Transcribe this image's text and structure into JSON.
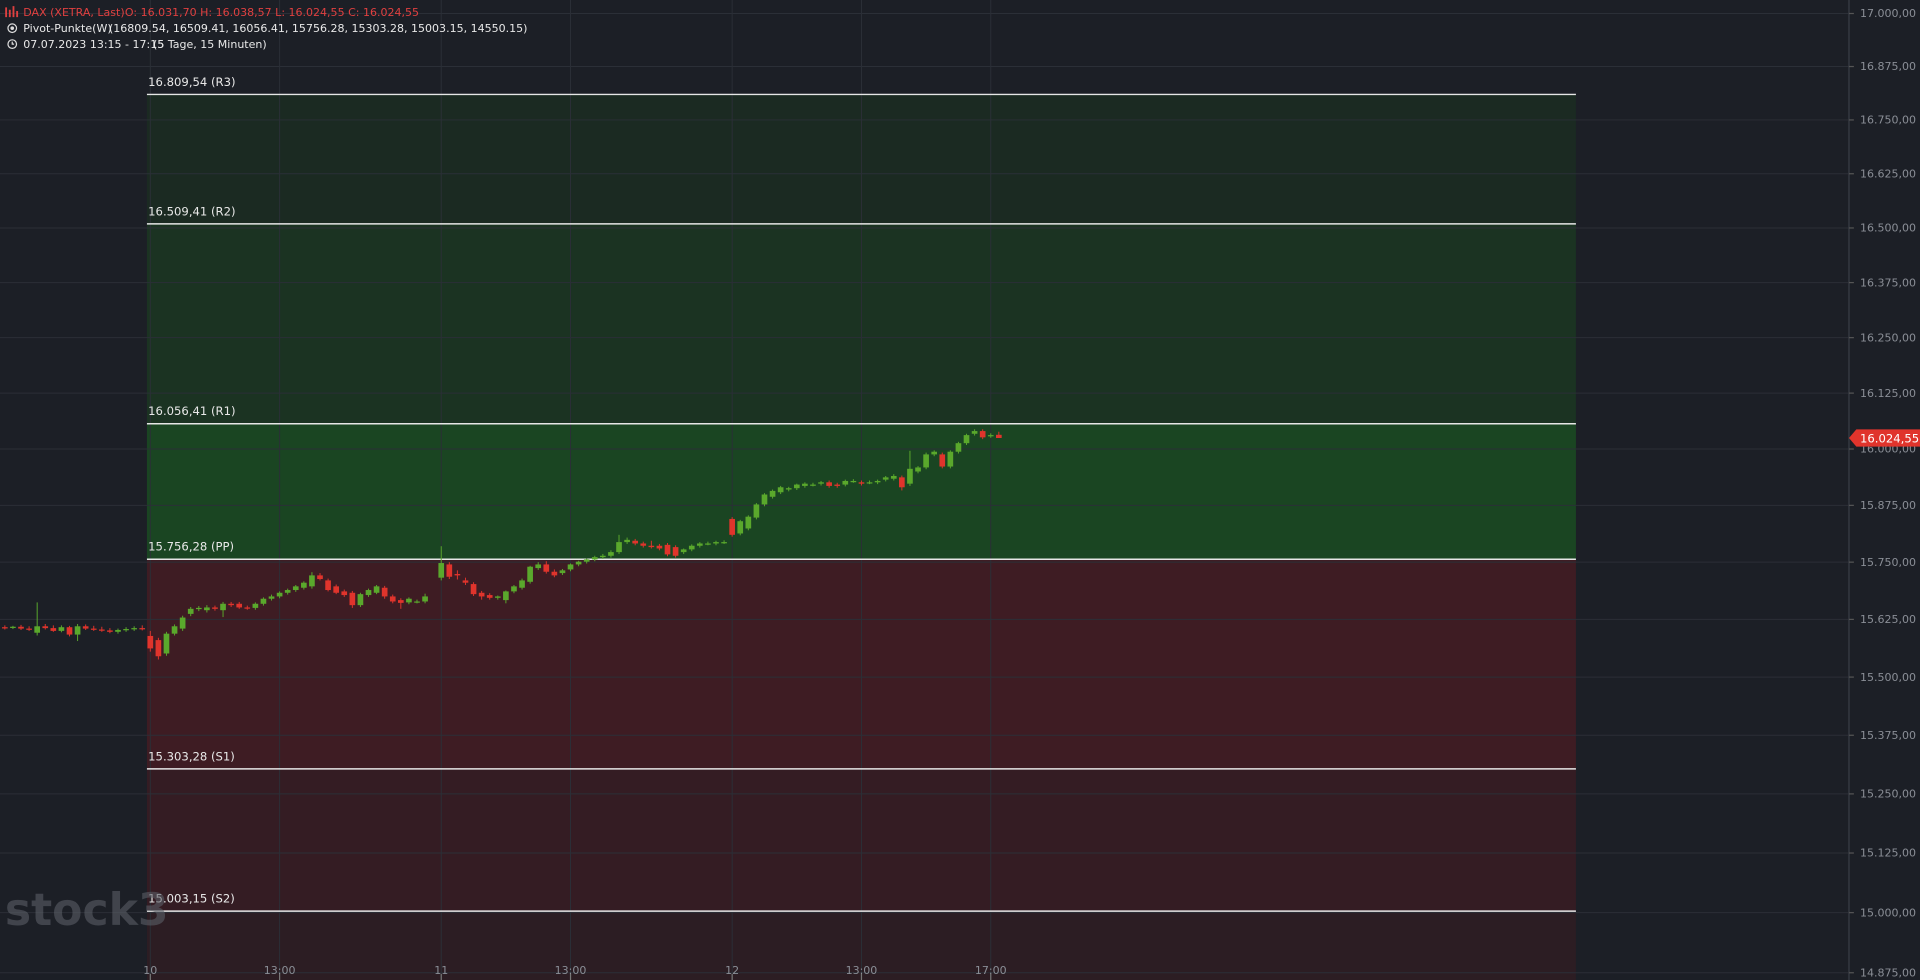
{
  "chart_data": {
    "type": "candlestick",
    "header": {
      "instrument": "DAX (XETRA, Last)",
      "ohlc_text": "O: 16.031,70  H: 16.038,57  L: 16.024,55  C: 16.024,55",
      "indicator": "Pivot-Punkte(W)",
      "indicator_values": "(16809.54,  16509.41,  16056.41,  15756.28,  15303.28,  15003.15,  14550.15)",
      "period": "07.07.2023 13:15 - 17:15",
      "period_detail": "(5 Tage, 15 Minuten)"
    },
    "watermark": "stock3",
    "log_scale": true,
    "grid": true,
    "up_color": "#5aa82c",
    "down_color": "#e0342c",
    "ylim": [
      14860,
      17032
    ],
    "yticks": [
      {
        "value": 17000,
        "label": "17.000,00"
      },
      {
        "value": 16875,
        "label": "16.875,00"
      },
      {
        "value": 16750,
        "label": "16.750,00"
      },
      {
        "value": 16625,
        "label": "16.625,00"
      },
      {
        "value": 16500,
        "label": "16.500,00"
      },
      {
        "value": 16375,
        "label": "16.375,00"
      },
      {
        "value": 16250,
        "label": "16.250,00"
      },
      {
        "value": 16125,
        "label": "16.125,00"
      },
      {
        "value": 16000,
        "label": "16.000,00"
      },
      {
        "value": 15875,
        "label": "15.875,00"
      },
      {
        "value": 15750,
        "label": "15.750,00"
      },
      {
        "value": 15625,
        "label": "15.625,00"
      },
      {
        "value": 15500,
        "label": "15.500,00"
      },
      {
        "value": 15375,
        "label": "15.375,00"
      },
      {
        "value": 15250,
        "label": "15.250,00"
      },
      {
        "value": 15125,
        "label": "15.125,00"
      },
      {
        "value": 15000,
        "label": "15.000,00"
      },
      {
        "value": 14875,
        "label": "14.875,00"
      }
    ],
    "xlim": [
      -0.6,
      228.2
    ],
    "xticks": [
      {
        "value": 18,
        "label": "10"
      },
      {
        "value": 34,
        "label": "13:00"
      },
      {
        "value": 54,
        "label": "11"
      },
      {
        "value": 70,
        "label": "13:00"
      },
      {
        "value": 90,
        "label": "12"
      },
      {
        "value": 106,
        "label": "13:00"
      },
      {
        "value": 122,
        "label": "17:00"
      }
    ],
    "pivots": [
      {
        "value": 16809.54,
        "label": "16.809,54 (R3)"
      },
      {
        "value": 16509.41,
        "label": "16.509,41 (R2)"
      },
      {
        "value": 16056.41,
        "label": "16.056,41 (R1)"
      },
      {
        "value": 15756.28,
        "label": "15.756,28 (PP)"
      },
      {
        "value": 15303.28,
        "label": "15.303,28 (S1)"
      },
      {
        "value": 15003.15,
        "label": "15.003,15 (S2)"
      }
    ],
    "last_price": {
      "value": 16024.55,
      "label": "16.024,55"
    },
    "ohlc": [
      [
        15608,
        15612,
        15603,
        15607
      ],
      [
        15607,
        15611,
        15604,
        15609
      ],
      [
        15609,
        15613,
        15602,
        15605
      ],
      [
        15605,
        15610,
        15600,
        15603
      ],
      [
        15596,
        15662,
        15590,
        15610
      ],
      [
        15610,
        15615,
        15603,
        15606
      ],
      [
        15606,
        15612,
        15598,
        15600
      ],
      [
        15600,
        15612,
        15597,
        15608
      ],
      [
        15608,
        15611,
        15588,
        15592
      ],
      [
        15592,
        15615,
        15578,
        15610
      ],
      [
        15610,
        15614,
        15602,
        15605
      ],
      [
        15605,
        15611,
        15600,
        15603
      ],
      [
        15603,
        15609,
        15598,
        15601
      ],
      [
        15601,
        15606,
        15595,
        15598
      ],
      [
        15598,
        15605,
        15594,
        15602
      ],
      [
        15602,
        15608,
        15598,
        15604
      ],
      [
        15604,
        15610,
        15600,
        15606
      ],
      [
        15606,
        15612,
        15601,
        15604
      ],
      [
        15589,
        15600,
        15555,
        15562
      ],
      [
        15580,
        15585,
        15538,
        15545
      ],
      [
        15551,
        15598,
        15546,
        15594
      ],
      [
        15594,
        15614,
        15590,
        15610
      ],
      [
        15605,
        15633,
        15600,
        15629
      ],
      [
        15637,
        15652,
        15632,
        15648
      ],
      [
        15648,
        15654,
        15643,
        15650
      ],
      [
        15645,
        15656,
        15640,
        15651
      ],
      [
        15651,
        15655,
        15644,
        15648
      ],
      [
        15645,
        15663,
        15630,
        15659
      ],
      [
        15659,
        15663,
        15652,
        15656
      ],
      [
        15659,
        15663,
        15648,
        15651
      ],
      [
        15651,
        15655,
        15646,
        15650
      ],
      [
        15650,
        15662,
        15646,
        15659
      ],
      [
        15659,
        15673,
        15655,
        15670
      ],
      [
        15670,
        15679,
        15666,
        15675
      ],
      [
        15675,
        15686,
        15671,
        15683
      ],
      [
        15683,
        15692,
        15679,
        15689
      ],
      [
        15689,
        15700,
        15685,
        15697
      ],
      [
        15694,
        15708,
        15690,
        15705
      ],
      [
        15697,
        15728,
        15692,
        15721
      ],
      [
        15721,
        15726,
        15710,
        15713
      ],
      [
        15710,
        15714,
        15686,
        15689
      ],
      [
        15697,
        15701,
        15680,
        15683
      ],
      [
        15686,
        15690,
        15674,
        15678
      ],
      [
        15683,
        15687,
        15650,
        15656
      ],
      [
        15656,
        15683,
        15652,
        15680
      ],
      [
        15678,
        15692,
        15674,
        15689
      ],
      [
        15683,
        15700,
        15680,
        15697
      ],
      [
        15694,
        15698,
        15670,
        15675
      ],
      [
        15675,
        15679,
        15660,
        15664
      ],
      [
        15667,
        15671,
        15648,
        15661
      ],
      [
        15662,
        15673,
        15658,
        15670
      ],
      [
        15664,
        15668,
        15660,
        15664
      ],
      [
        15664,
        15681,
        15660,
        15675
      ],
      null,
      [
        15716,
        15785,
        15710,
        15748
      ],
      [
        15745,
        15750,
        15713,
        15718
      ],
      [
        15724,
        15732,
        15712,
        15721
      ],
      [
        15710,
        15716,
        15700,
        15705
      ],
      [
        15702,
        15706,
        15676,
        15680
      ],
      [
        15683,
        15687,
        15668,
        15675
      ],
      [
        15678,
        15682,
        15668,
        15672
      ],
      [
        15672,
        15677,
        15668,
        15675
      ],
      [
        15667,
        15688,
        15660,
        15686
      ],
      [
        15686,
        15700,
        15682,
        15697
      ],
      [
        15694,
        15714,
        15690,
        15710
      ],
      [
        15707,
        15742,
        15703,
        15740
      ],
      [
        15737,
        15750,
        15733,
        15745
      ],
      [
        15745,
        15752,
        15725,
        15729
      ],
      [
        15729,
        15734,
        15717,
        15721
      ],
      [
        15726,
        15735,
        15722,
        15732
      ],
      [
        15734,
        15747,
        15730,
        15745
      ],
      [
        15745,
        15753,
        15741,
        15751
      ],
      [
        15751,
        15758,
        15747,
        15756
      ],
      [
        15756,
        15764,
        15752,
        15761
      ],
      [
        15761,
        15768,
        15757,
        15764
      ],
      [
        15764,
        15776,
        15760,
        15772
      ],
      [
        15772,
        15810,
        15768,
        15794
      ],
      [
        15794,
        15804,
        15790,
        15799
      ],
      [
        15797,
        15801,
        15787,
        15791
      ],
      [
        15791,
        15795,
        15782,
        15786
      ],
      [
        15786,
        15797,
        15780,
        15783
      ],
      [
        15786,
        15790,
        15776,
        15780
      ],
      [
        15788,
        15792,
        15763,
        15767
      ],
      [
        15783,
        15787,
        15760,
        15764
      ],
      [
        15772,
        15780,
        15768,
        15778
      ],
      [
        15778,
        15789,
        15774,
        15786
      ],
      [
        15786,
        15794,
        15782,
        15791
      ],
      [
        15791,
        15795,
        15787,
        15791
      ],
      [
        15791,
        15797,
        15787,
        15794
      ],
      [
        15794,
        15798,
        15790,
        15794
      ],
      [
        15845,
        15849,
        15806,
        15810
      ],
      [
        15813,
        15843,
        15809,
        15840
      ],
      [
        15824,
        15853,
        15820,
        15850
      ],
      [
        15848,
        15880,
        15844,
        15877
      ],
      [
        15877,
        15902,
        15873,
        15899
      ],
      [
        15894,
        15910,
        15890,
        15907
      ],
      [
        15904,
        15918,
        15900,
        15915
      ],
      [
        15910,
        15916,
        15906,
        15913
      ],
      [
        15913,
        15923,
        15909,
        15921
      ],
      [
        15918,
        15926,
        15914,
        15923
      ],
      [
        15921,
        15925,
        15917,
        15921
      ],
      [
        15923,
        15929,
        15919,
        15926
      ],
      [
        15926,
        15930,
        15914,
        15918
      ],
      [
        15921,
        15925,
        15914,
        15918
      ],
      [
        15921,
        15932,
        15917,
        15929
      ],
      [
        15929,
        15933,
        15925,
        15929
      ],
      [
        15926,
        15930,
        15919,
        15923
      ],
      [
        15926,
        15930,
        15922,
        15926
      ],
      [
        15926,
        15932,
        15922,
        15929
      ],
      [
        15932,
        15940,
        15928,
        15937
      ],
      [
        15934,
        15944,
        15930,
        15940
      ],
      [
        15937,
        15941,
        15908,
        15915
      ],
      [
        15923,
        15996,
        15918,
        15956
      ],
      [
        15950,
        15962,
        15946,
        15959
      ],
      [
        15959,
        15992,
        15955,
        15988
      ],
      [
        15988,
        15997,
        15984,
        15994
      ],
      [
        15988,
        15992,
        15957,
        15961
      ],
      [
        15961,
        15997,
        15957,
        15994
      ],
      [
        15994,
        16016,
        15990,
        16013
      ],
      [
        16013,
        16034,
        16009,
        16031
      ],
      [
        16034,
        16044,
        16030,
        16040
      ],
      [
        16040,
        16044,
        16022,
        16026
      ],
      [
        16029,
        16035,
        16025,
        16031
      ],
      [
        16031.7,
        16038.57,
        16024.55,
        16024.55
      ]
    ]
  }
}
